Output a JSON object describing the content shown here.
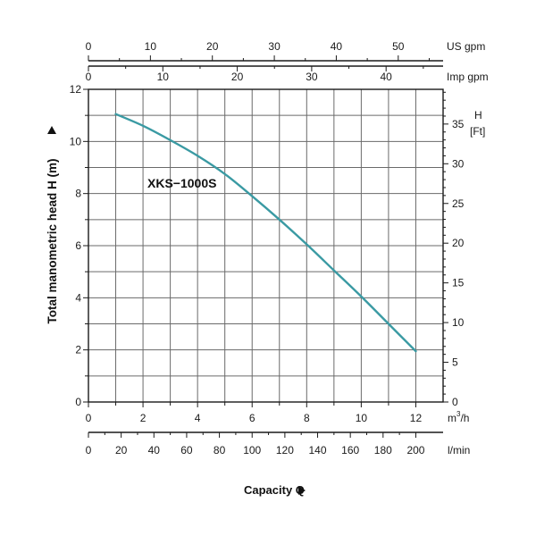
{
  "chart_data": {
    "type": "line",
    "title": "",
    "series": [
      {
        "name": "XKS-1000S",
        "color": "#3a9aa3",
        "x": [
          1.0,
          2.0,
          3.0,
          4.0,
          5.0,
          6.0,
          7.0,
          8.0,
          9.0,
          10.0,
          11.0,
          12.0
        ],
        "y": [
          11.05,
          10.6,
          10.05,
          9.45,
          8.75,
          7.9,
          7.0,
          6.05,
          5.05,
          4.05,
          3.0,
          1.95
        ]
      }
    ],
    "ylabel": "Total manometric head H (m)",
    "ylim": [
      0,
      12
    ],
    "yticks": [
      0,
      2,
      4,
      6,
      8,
      10,
      12
    ],
    "xlabel": "Capacity Q",
    "xlim": [
      0,
      13
    ],
    "x_axes": {
      "m3h": {
        "unit": "m³/h",
        "ticks": [
          0,
          2,
          4,
          6,
          8,
          10,
          12
        ]
      },
      "lmin": {
        "unit": "l/min",
        "ticks": [
          0,
          20,
          40,
          60,
          80,
          100,
          120,
          140,
          160,
          180,
          200
        ]
      },
      "usgpm": {
        "unit": "US gpm",
        "ticks": [
          0,
          10,
          20,
          30,
          40,
          50
        ]
      },
      "impgpm": {
        "unit": "Imp gpm",
        "ticks": [
          0,
          10,
          20,
          30,
          40
        ]
      }
    },
    "y_right": {
      "unit": "H [Ft]",
      "ticks": [
        0,
        5,
        10,
        15,
        20,
        25,
        30,
        35
      ]
    },
    "grid": true,
    "legend": "inline-label"
  },
  "labels": {
    "ylabel": "Total manometric head H (m)",
    "xlabel": "Capacity Q",
    "series_label": "XKS−1000S",
    "unit_us": "US  gpm",
    "unit_imp": "Imp gpm",
    "unit_h": "H",
    "unit_ft": "[Ft]",
    "unit_m3h_base": "m",
    "unit_m3h_sup": "3",
    "unit_m3h_tail": "/h",
    "unit_lmin": "l/min"
  }
}
